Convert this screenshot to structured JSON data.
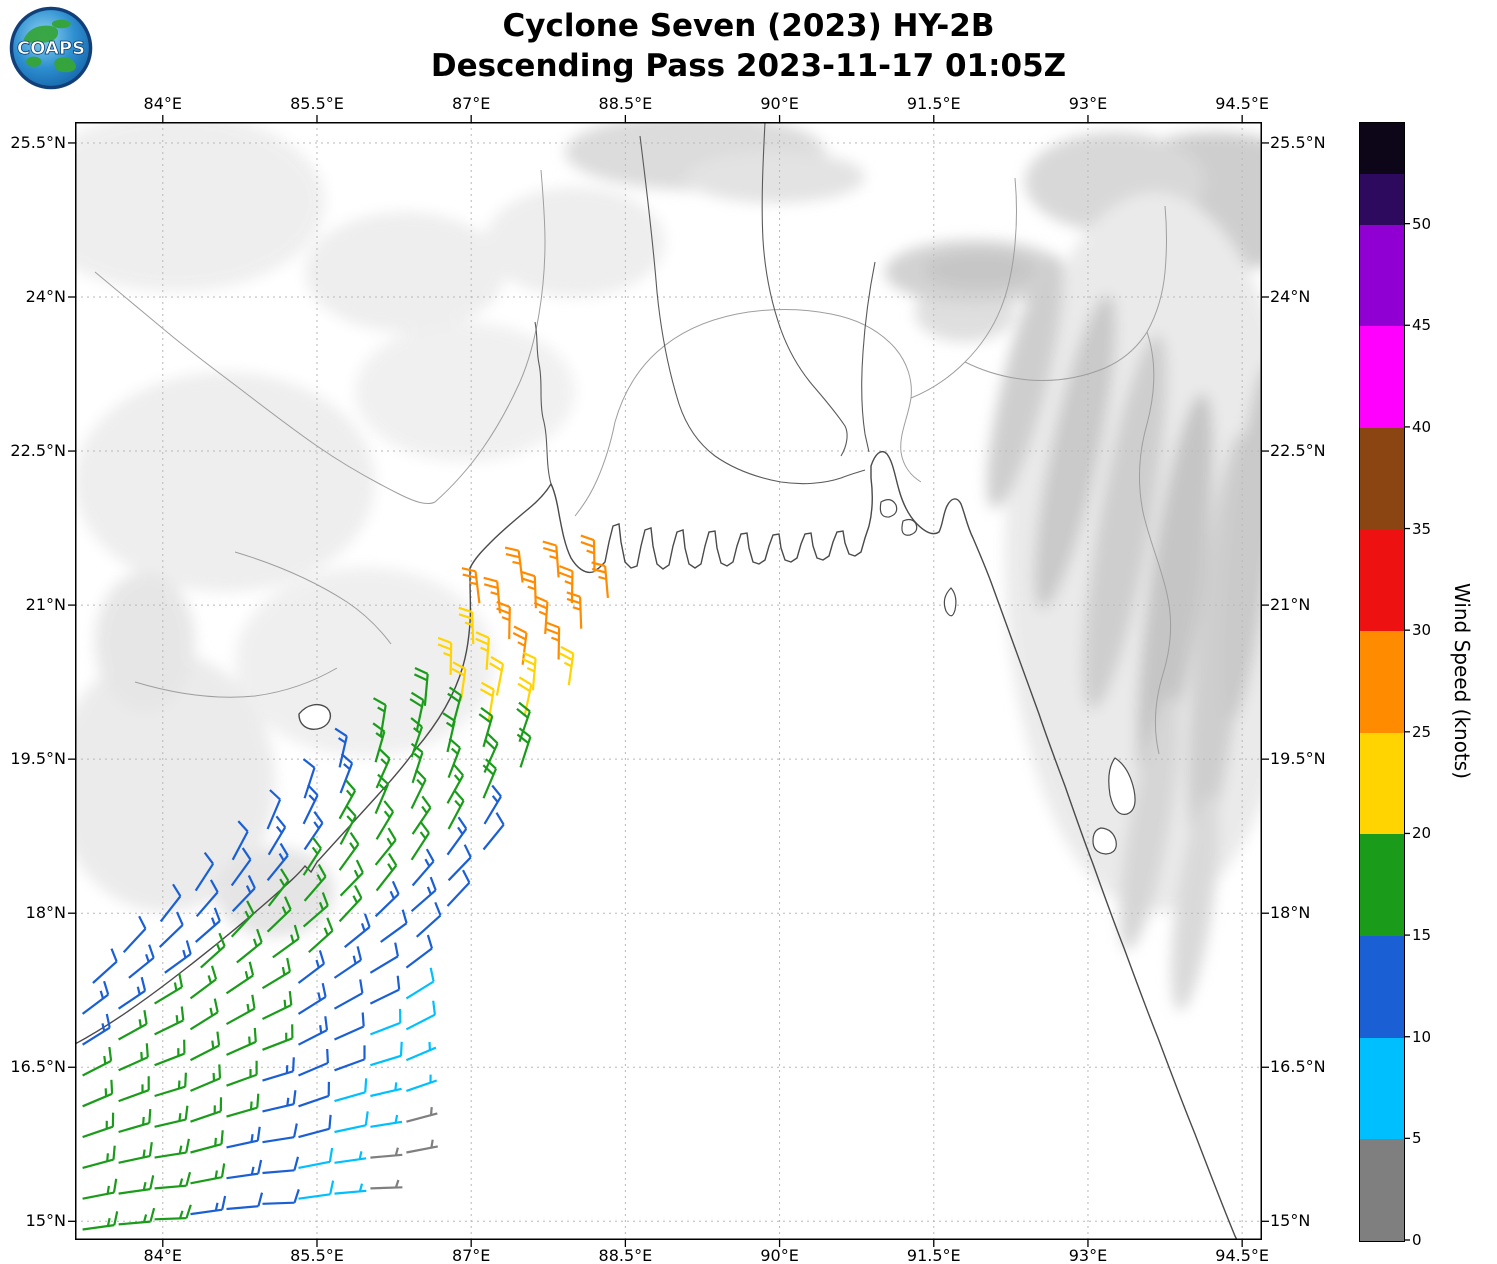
{
  "header": {
    "logo_text": "COAPS",
    "title_line1": "Cyclone Seven (2023) HY-2B",
    "title_line2": "Descending Pass 2023-11-17 01:05Z"
  },
  "axes": {
    "lon_ticks": [
      {
        "value": 84,
        "label": "84°E"
      },
      {
        "value": 85.5,
        "label": "85.5°E"
      },
      {
        "value": 87,
        "label": "87°E"
      },
      {
        "value": 88.5,
        "label": "88.5°E"
      },
      {
        "value": 90,
        "label": "90°E"
      },
      {
        "value": 91.5,
        "label": "91.5°E"
      },
      {
        "value": 93,
        "label": "93°E"
      },
      {
        "value": 94.5,
        "label": "94.5°E"
      }
    ],
    "lat_ticks": [
      {
        "value": 25.5,
        "label": "25.5°N"
      },
      {
        "value": 24,
        "label": "24°N"
      },
      {
        "value": 22.5,
        "label": "22.5°N"
      },
      {
        "value": 21,
        "label": "21°N"
      },
      {
        "value": 19.5,
        "label": "19.5°N"
      },
      {
        "value": 18,
        "label": "18°N"
      },
      {
        "value": 16.5,
        "label": "16.5°N"
      },
      {
        "value": 15,
        "label": "15°N"
      }
    ]
  },
  "colorbar": {
    "label": "Wind Speed (knots)",
    "vmin": 0,
    "vmax": 55,
    "ticks": [
      0,
      5,
      10,
      15,
      20,
      25,
      30,
      35,
      40,
      45,
      50
    ],
    "segments": [
      {
        "from": 0,
        "to": 5,
        "color": "#7f7f7f"
      },
      {
        "from": 5,
        "to": 10,
        "color": "#00bfff"
      },
      {
        "from": 10,
        "to": 15,
        "color": "#1a5fd4"
      },
      {
        "from": 15,
        "to": 20,
        "color": "#1a9c1a"
      },
      {
        "from": 20,
        "to": 25,
        "color": "#ffd400"
      },
      {
        "from": 25,
        "to": 30,
        "color": "#ff8c00"
      },
      {
        "from": 30,
        "to": 35,
        "color": "#ee1111"
      },
      {
        "from": 35,
        "to": 40,
        "color": "#8b4513"
      },
      {
        "from": 40,
        "to": 45,
        "color": "#ff00ff"
      },
      {
        "from": 45,
        "to": 50,
        "color": "#9000d3"
      },
      {
        "from": 50,
        "to": 52.5,
        "color": "#2e0a5e"
      },
      {
        "from": 52.5,
        "to": 55,
        "color": "#0d0618"
      }
    ]
  },
  "chart_data": {
    "type": "scatter",
    "glyph": "wind_barb",
    "title": "Cyclone Seven (2023) HY-2B — Descending Pass 2023-11-17 01:05Z",
    "storm": "Cyclone Seven (2023)",
    "satellite": "HY-2B",
    "pass_type": "Descending",
    "valid_time": "2023-11-17 01:05Z",
    "units": "knots",
    "lon_range": [
      83.146,
      94.693
    ],
    "lat_range": [
      14.818,
      25.704
    ],
    "lon_tick_values": [
      84,
      85.5,
      87,
      88.5,
      90,
      91.5,
      93,
      94.5
    ],
    "lat_tick_values": [
      15,
      16.5,
      18,
      19.5,
      21,
      22.5,
      24,
      25.5
    ],
    "barb_dlon": 0.35,
    "barb_dlat": 0.05,
    "barb_rows": [
      {
        "lat": 21.02,
        "lon0": 87.08,
        "dir": 356,
        "speeds": [
          25
        ]
      },
      {
        "lat": 21.22,
        "lon0": 87.5,
        "dir": 356,
        "speeds": [
          26,
          27,
          27
        ]
      },
      {
        "lat": 20.92,
        "lon0": 87.28,
        "dir": 358,
        "speeds": [
          26,
          26,
          27,
          27
        ]
      },
      {
        "lat": 20.62,
        "lon0": 87.02,
        "dir": 1,
        "speeds": [
          24,
          25,
          26,
          26
        ]
      },
      {
        "lat": 20.32,
        "lon0": 86.8,
        "dir": 4,
        "speeds": [
          23,
          24,
          25,
          26
        ]
      },
      {
        "lat": 20.02,
        "lon0": 86.55,
        "dir": 8,
        "speeds": [
          19,
          21,
          22,
          23,
          24
        ]
      },
      {
        "lat": 19.72,
        "lon0": 86.12,
        "dir": 12,
        "speeds": [
          17,
          18,
          19,
          21,
          22
        ]
      },
      {
        "lat": 19.42,
        "lon0": 85.72,
        "dir": 16,
        "speeds": [
          13,
          16,
          17,
          17,
          18,
          19
        ]
      },
      {
        "lat": 19.12,
        "lon0": 85.38,
        "dir": 21,
        "speeds": [
          12,
          14,
          16,
          17,
          17,
          18,
          19
        ]
      },
      {
        "lat": 18.82,
        "lon0": 85.02,
        "dir": 26,
        "speeds": [
          12,
          13,
          15,
          16,
          17,
          17,
          18
        ]
      },
      {
        "lat": 18.52,
        "lon0": 84.68,
        "dir": 31,
        "speeds": [
          11,
          13,
          14,
          16,
          16,
          17,
          17,
          13
        ]
      },
      {
        "lat": 18.22,
        "lon0": 84.32,
        "dir": 36,
        "speeds": [
          11,
          12,
          14,
          15,
          16,
          16,
          17,
          14,
          12
        ]
      },
      {
        "lat": 17.92,
        "lon0": 83.98,
        "dir": 41,
        "speeds": [
          11,
          12,
          13,
          15,
          16,
          16,
          16,
          14,
          12
        ]
      },
      {
        "lat": 17.62,
        "lon0": 83.62,
        "dir": 46,
        "speeds": [
          12,
          12,
          13,
          15,
          16,
          16,
          15,
          14,
          13,
          11
        ]
      },
      {
        "lat": 17.32,
        "lon0": 83.32,
        "dir": 51,
        "speeds": [
          12,
          13,
          14,
          15,
          16,
          16,
          15,
          14,
          12,
          11
        ]
      },
      {
        "lat": 17.02,
        "lon0": 83.22,
        "dir": 56,
        "speeds": [
          13,
          14,
          15,
          16,
          16,
          15,
          14,
          13,
          12,
          11
        ]
      },
      {
        "lat": 16.72,
        "lon0": 83.22,
        "dir": 61,
        "speeds": [
          14,
          15,
          16,
          16,
          16,
          15,
          14,
          12,
          11,
          9
        ]
      },
      {
        "lat": 16.42,
        "lon0": 83.22,
        "dir": 66,
        "speeds": [
          15,
          16,
          16,
          17,
          16,
          15,
          13,
          12,
          9,
          8
        ]
      },
      {
        "lat": 16.12,
        "lon0": 83.22,
        "dir": 70,
        "speeds": [
          16,
          16,
          17,
          16,
          15,
          14,
          12,
          10,
          8,
          7
        ]
      },
      {
        "lat": 15.82,
        "lon0": 83.22,
        "dir": 74,
        "speeds": [
          16,
          17,
          17,
          16,
          15,
          13,
          11,
          9,
          7,
          6
        ]
      },
      {
        "lat": 15.52,
        "lon0": 83.22,
        "dir": 78,
        "speeds": [
          17,
          17,
          16,
          15,
          14,
          12,
          10,
          8,
          6,
          4
        ]
      },
      {
        "lat": 15.22,
        "lon0": 83.22,
        "dir": 82,
        "speeds": [
          17,
          16,
          16,
          15,
          13,
          11,
          9,
          7,
          4,
          3
        ]
      },
      {
        "lat": 14.92,
        "lon0": 83.22,
        "dir": 85,
        "speeds": [
          16,
          16,
          15,
          14,
          12,
          10,
          8,
          6,
          4
        ]
      }
    ]
  }
}
